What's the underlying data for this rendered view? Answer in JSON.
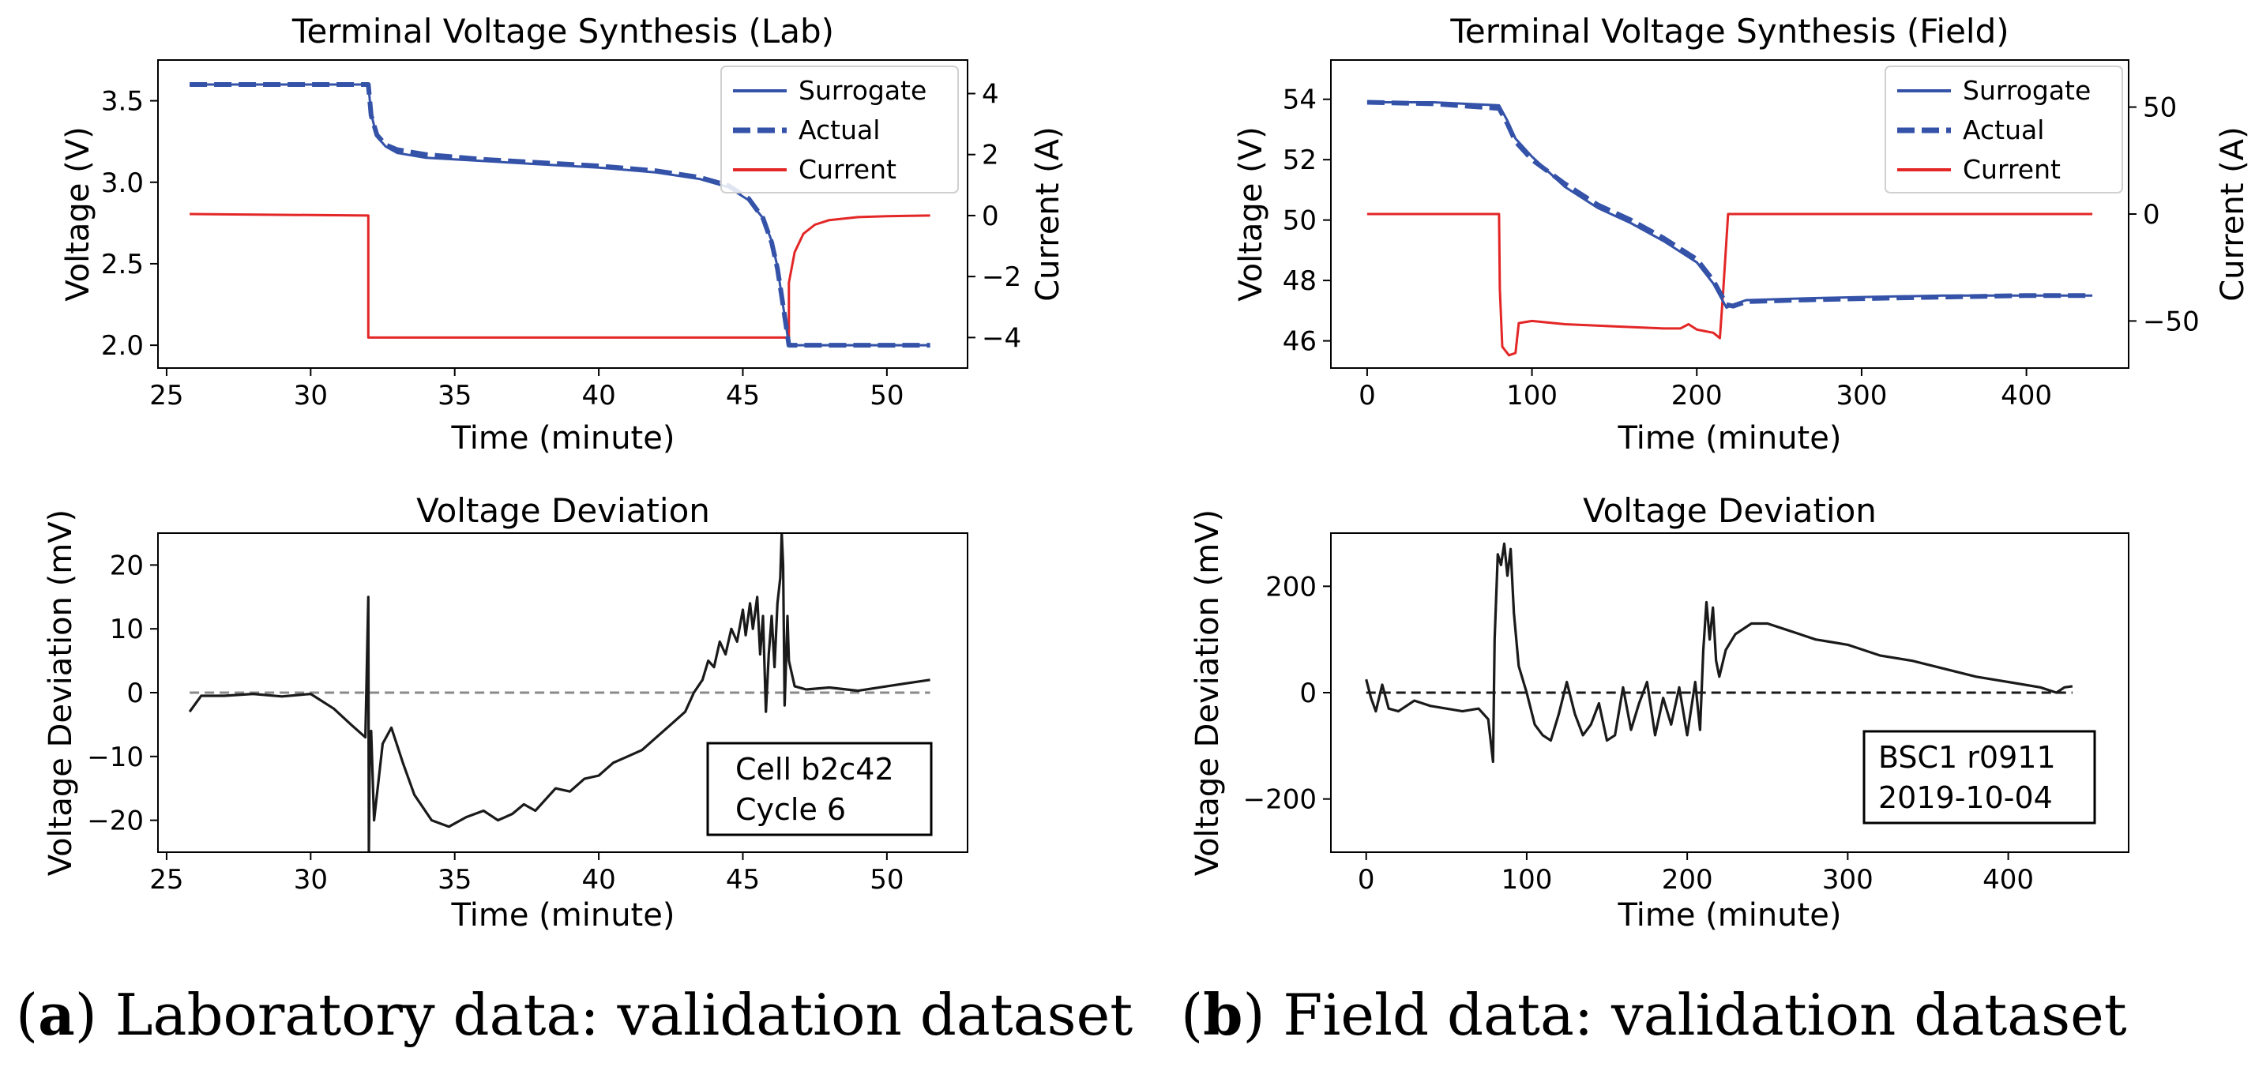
{
  "captions": {
    "a": {
      "letter": "a",
      "open": "(",
      "close": ")",
      "text": " Laboratory data: validation dataset"
    },
    "b": {
      "letter": "b",
      "open": "(",
      "close": ")",
      "text": " Field data: validation dataset"
    }
  },
  "colors": {
    "surrogate": "#3452a8",
    "actual": "#3452a8",
    "current": "#e32626",
    "deviation": "#1a1a1a",
    "zero_line_lab": "#8a8a8a",
    "zero_line_field": "#1a1a1a"
  },
  "chart_data": [
    {
      "id": "lab_voltage",
      "type": "line",
      "title": "Terminal Voltage Synthesis (Lab)",
      "xlabel": "Time (minute)",
      "ylabel": "Voltage (V)",
      "y2label": "Current (A)",
      "xlim": [
        24.7,
        52.8
      ],
      "ylim": [
        1.86,
        3.75
      ],
      "y2lim": [
        -5.0,
        5.1
      ],
      "xticks": [
        "25",
        "30",
        "35",
        "40",
        "45",
        "50"
      ],
      "xtick_values": [
        25,
        30,
        35,
        40,
        45,
        50
      ],
      "yticks": [
        "2.0",
        "2.5",
        "3.0",
        "3.5"
      ],
      "ytick_values": [
        2.0,
        2.5,
        3.0,
        3.5
      ],
      "y2ticks": [
        "4",
        "2",
        "0",
        "−2",
        "−4"
      ],
      "y2tick_values": [
        4,
        2,
        0,
        -2,
        -4
      ],
      "legend": {
        "position": "top-right",
        "entries": [
          "Surrogate",
          "Actual",
          "Current"
        ]
      },
      "series": [
        {
          "name": "Surrogate",
          "axis": "left",
          "style": "solid",
          "x": [
            25.8,
            32.0,
            32.1,
            32.3,
            32.6,
            33.0,
            34.0,
            36.0,
            38.0,
            40.0,
            42.0,
            43.5,
            44.5,
            45.2,
            45.7,
            46.0,
            46.2,
            46.35,
            46.5,
            46.6,
            51.5
          ],
          "y": [
            3.6,
            3.6,
            3.42,
            3.28,
            3.22,
            3.18,
            3.15,
            3.13,
            3.11,
            3.09,
            3.06,
            3.02,
            2.97,
            2.89,
            2.78,
            2.64,
            2.48,
            2.3,
            2.12,
            2.0,
            2.0
          ]
        },
        {
          "name": "Actual",
          "axis": "left",
          "style": "dashed",
          "x": [
            25.8,
            32.0,
            32.1,
            32.3,
            32.6,
            33.0,
            34.0,
            36.0,
            38.0,
            40.0,
            42.0,
            43.5,
            44.5,
            45.2,
            45.7,
            46.0,
            46.2,
            46.35,
            46.5,
            46.6,
            51.5
          ],
          "y": [
            3.6,
            3.6,
            3.41,
            3.29,
            3.23,
            3.2,
            3.17,
            3.14,
            3.12,
            3.1,
            3.07,
            3.03,
            2.98,
            2.9,
            2.78,
            2.63,
            2.47,
            2.3,
            2.12,
            2.0,
            2.0
          ]
        },
        {
          "name": "Current",
          "axis": "right",
          "style": "solid",
          "x": [
            25.8,
            32.0,
            32.0,
            46.6,
            46.6,
            46.8,
            47.1,
            47.5,
            48.0,
            49.0,
            50.0,
            51.5
          ],
          "y": [
            0.05,
            0.0,
            -4.0,
            -4.0,
            -2.2,
            -1.2,
            -0.6,
            -0.3,
            -0.15,
            -0.05,
            -0.02,
            0.0
          ]
        }
      ]
    },
    {
      "id": "field_voltage",
      "type": "line",
      "title": "Terminal Voltage Synthesis (Field)",
      "xlabel": "Time (minute)",
      "ylabel": "Voltage (V)",
      "y2label": "Current (A)",
      "xlim": [
        -22,
        462
      ],
      "ylim": [
        45.1,
        55.3
      ],
      "y2lim": [
        -72,
        72
      ],
      "xticks": [
        "0",
        "100",
        "200",
        "300",
        "400"
      ],
      "xtick_values": [
        0,
        100,
        200,
        300,
        400
      ],
      "yticks": [
        "46",
        "48",
        "50",
        "52",
        "54"
      ],
      "ytick_values": [
        46,
        48,
        50,
        52,
        54
      ],
      "y2ticks": [
        "50",
        "0",
        "−50"
      ],
      "y2tick_values": [
        50,
        0,
        -50
      ],
      "legend": {
        "position": "top-right",
        "entries": [
          "Surrogate",
          "Actual",
          "Current"
        ]
      },
      "series": [
        {
          "name": "Surrogate",
          "axis": "left",
          "style": "solid",
          "x": [
            0,
            40,
            80,
            85,
            90,
            100,
            120,
            140,
            160,
            180,
            200,
            210,
            215,
            218,
            222,
            230,
            260,
            300,
            350,
            400,
            440
          ],
          "y": [
            53.9,
            53.9,
            53.8,
            53.3,
            52.7,
            52.1,
            51.1,
            50.4,
            49.9,
            49.3,
            48.6,
            47.9,
            47.4,
            47.1,
            47.2,
            47.35,
            47.4,
            47.45,
            47.5,
            47.5,
            47.5
          ]
        },
        {
          "name": "Actual",
          "axis": "left",
          "style": "dashed",
          "x": [
            0,
            40,
            80,
            85,
            90,
            100,
            120,
            140,
            160,
            180,
            200,
            210,
            215,
            218,
            222,
            230,
            260,
            300,
            350,
            400,
            440
          ],
          "y": [
            53.9,
            53.85,
            53.7,
            53.2,
            52.6,
            52.0,
            51.2,
            50.5,
            50.0,
            49.4,
            48.7,
            48.0,
            47.5,
            47.2,
            47.15,
            47.3,
            47.35,
            47.4,
            47.45,
            47.5,
            47.5
          ]
        },
        {
          "name": "Current",
          "axis": "right",
          "style": "solid",
          "x": [
            0,
            80,
            80.5,
            82,
            86,
            90,
            92,
            100,
            120,
            150,
            180,
            190,
            195,
            200,
            210,
            214,
            216,
            219,
            440
          ],
          "y": [
            0,
            0,
            -35,
            -62,
            -66,
            -65,
            -51,
            -50,
            -51.5,
            -52.5,
            -53.5,
            -53.5,
            -51.5,
            -54,
            -55.5,
            -58,
            -36,
            0,
            0
          ]
        }
      ]
    },
    {
      "id": "lab_deviation",
      "type": "line",
      "title": "Voltage Deviation",
      "xlabel": "Time (minute)",
      "ylabel": "Voltage Deviation (mV)",
      "xlim": [
        24.7,
        52.8
      ],
      "ylim": [
        -25,
        25
      ],
      "xticks": [
        "25",
        "30",
        "35",
        "40",
        "45",
        "50"
      ],
      "xtick_values": [
        25,
        30,
        35,
        40,
        45,
        50
      ],
      "yticks": [
        "−20",
        "−10",
        "0",
        "10",
        "20"
      ],
      "ytick_values": [
        -20,
        -10,
        0,
        10,
        20
      ],
      "annotation": {
        "lines": [
          "Cell b2c42",
          "Cycle 6"
        ],
        "position": "bottom-right"
      },
      "reference_line": {
        "y": 0,
        "x_range": [
          25.8,
          51.5
        ],
        "style": "dashed"
      },
      "series": [
        {
          "name": "Deviation",
          "x": [
            25.8,
            26.2,
            27.0,
            28.0,
            29.0,
            30.0,
            30.8,
            31.4,
            31.9,
            32.0,
            32.02,
            32.05,
            32.1,
            32.2,
            32.5,
            32.8,
            33.2,
            33.6,
            34.2,
            34.8,
            35.4,
            36.0,
            36.5,
            37.0,
            37.4,
            37.8,
            38.5,
            39.0,
            39.5,
            40.0,
            40.5,
            41.0,
            41.5,
            42.0,
            42.5,
            43.0,
            43.3,
            43.6,
            43.8,
            44.0,
            44.2,
            44.4,
            44.6,
            44.8,
            45.0,
            45.1,
            45.25,
            45.35,
            45.5,
            45.6,
            45.7,
            45.8,
            45.9,
            46.0,
            46.1,
            46.2,
            46.3,
            46.35,
            46.4,
            46.45,
            46.55,
            46.6,
            46.8,
            47.2,
            48.0,
            49.0,
            50.0,
            51.5
          ],
          "y": [
            -3.0,
            -0.5,
            -0.5,
            -0.2,
            -0.6,
            -0.2,
            -2.5,
            -5.0,
            -7.0,
            15.0,
            -25.0,
            -10.0,
            -6.0,
            -20.0,
            -8.0,
            -5.5,
            -11.0,
            -16.0,
            -20.0,
            -21.0,
            -19.5,
            -18.5,
            -20.0,
            -19.0,
            -17.5,
            -18.5,
            -15.0,
            -15.5,
            -13.5,
            -13.0,
            -11.0,
            -10.0,
            -9.0,
            -7.0,
            -5.0,
            -3.0,
            0.0,
            2.0,
            5.0,
            4.0,
            8.0,
            6.0,
            10.0,
            8.0,
            13.0,
            9.0,
            14.0,
            10.0,
            15.0,
            6.0,
            12.0,
            -3.0,
            6.0,
            12.0,
            4.0,
            14.0,
            18.0,
            25.0,
            20.0,
            -2.0,
            12.0,
            5.0,
            1.0,
            0.5,
            0.8,
            0.3,
            1.0,
            2.0
          ]
        }
      ]
    },
    {
      "id": "field_deviation",
      "type": "line",
      "title": "Voltage Deviation",
      "xlabel": "Time (minute)",
      "ylabel": "Voltage Deviation (mV)",
      "xlim": [
        -22,
        475
      ],
      "ylim": [
        -300,
        300
      ],
      "xticks": [
        "0",
        "100",
        "200",
        "300",
        "400"
      ],
      "xtick_values": [
        0,
        100,
        200,
        300,
        400
      ],
      "yticks": [
        "−200",
        "0",
        "200"
      ],
      "ytick_values": [
        -200,
        0,
        200
      ],
      "annotation": {
        "lines": [
          "BSC1 r0911",
          "2019-10-04"
        ],
        "position": "bottom-right"
      },
      "reference_line": {
        "y": 0,
        "x_range": [
          0,
          440
        ],
        "style": "dashed"
      },
      "series": [
        {
          "name": "Deviation",
          "x": [
            0,
            3,
            6,
            10,
            14,
            20,
            30,
            40,
            50,
            60,
            70,
            76,
            79,
            80,
            82,
            84,
            86,
            88,
            90,
            92,
            95,
            100,
            105,
            110,
            115,
            120,
            125,
            130,
            135,
            140,
            145,
            150,
            155,
            160,
            165,
            170,
            175,
            180,
            185,
            190,
            195,
            200,
            205,
            208,
            210,
            212,
            214,
            216,
            218,
            220,
            224,
            230,
            240,
            250,
            260,
            270,
            280,
            290,
            300,
            320,
            340,
            360,
            380,
            400,
            420,
            430,
            435,
            440
          ],
          "y": [
            25,
            -10,
            -35,
            15,
            -30,
            -35,
            -15,
            -25,
            -30,
            -35,
            -30,
            -50,
            -130,
            100,
            260,
            240,
            280,
            220,
            270,
            150,
            50,
            0,
            -60,
            -80,
            -90,
            -40,
            20,
            -40,
            -80,
            -60,
            -20,
            -90,
            -80,
            10,
            -70,
            -20,
            20,
            -80,
            -10,
            -60,
            10,
            -80,
            20,
            -70,
            80,
            170,
            100,
            160,
            60,
            30,
            80,
            110,
            130,
            130,
            120,
            110,
            100,
            95,
            90,
            70,
            60,
            45,
            30,
            20,
            10,
            0,
            10,
            12
          ]
        }
      ]
    }
  ]
}
